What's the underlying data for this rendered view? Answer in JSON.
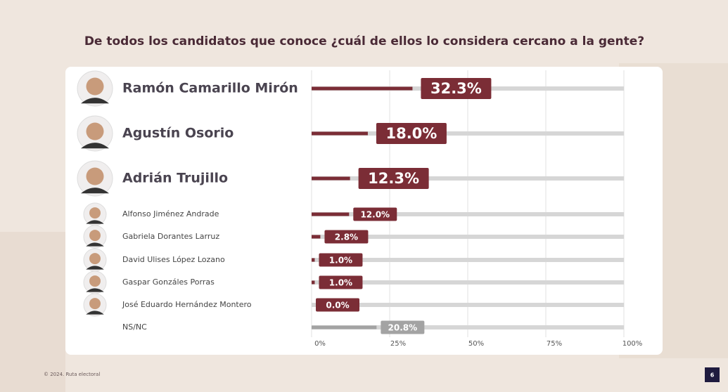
{
  "chart_data": {
    "type": "bar",
    "title": "De todos los candidatos que conoce ¿cuál de ellos lo considera cercano a la gente?",
    "categories": [
      "Ramón Camarillo Mirón",
      "Agustín Osorio",
      "Adrián Trujillo",
      "Alfonso Jiménez Andrade",
      "Gabriela Dorantes Larruz",
      "David Ulises López Lozano",
      "Gaspar Gonzáles Porras",
      "José Eduardo Hernández Montero",
      "NS/NC"
    ],
    "values": [
      32.3,
      18.0,
      12.3,
      12.0,
      2.8,
      1.0,
      1.0,
      0.0,
      20.8
    ],
    "value_labels": [
      "32.3%",
      "18.0%",
      "12.3%",
      "12.0%",
      "2.8%",
      "1.0%",
      "1.0%",
      "0.0%",
      "20.8%"
    ],
    "colors": [
      "#7b2d36",
      "#7b2d36",
      "#7b2d36",
      "#7b2d36",
      "#7b2d36",
      "#7b2d36",
      "#7b2d36",
      "#7b2d36",
      "#a3a3a3"
    ],
    "xlim": [
      0,
      100
    ],
    "xticks": [
      {
        "value": 0,
        "label": "0%"
      },
      {
        "value": 25,
        "label": "25%"
      },
      {
        "value": 50,
        "label": "50%"
      },
      {
        "value": 75,
        "label": "75%"
      },
      {
        "value": 100,
        "label": "100%"
      }
    ],
    "grid": true
  },
  "footer": "© 2024. Ruta electoral",
  "page": "6"
}
